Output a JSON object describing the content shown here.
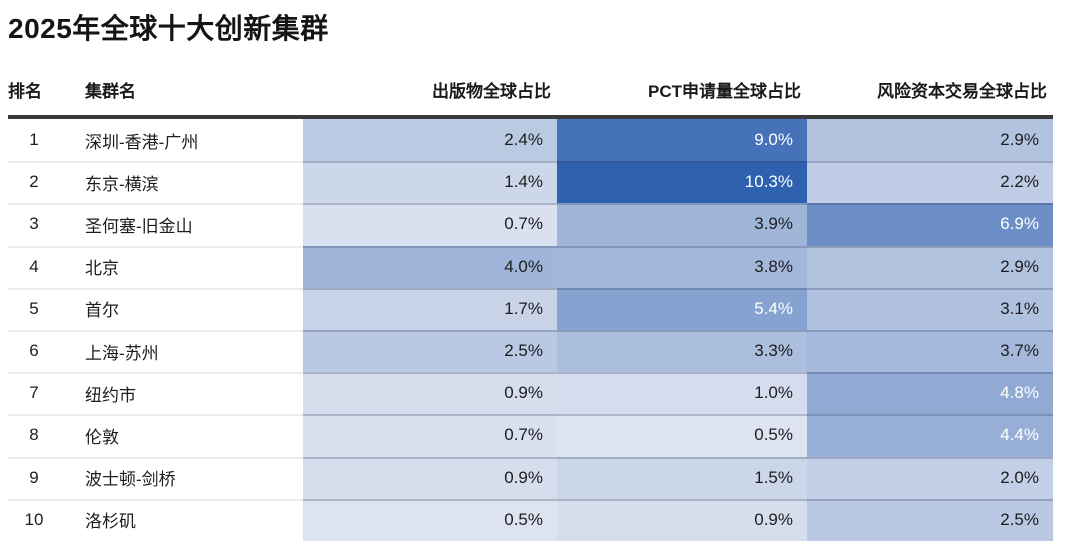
{
  "title": "2025年全球十大创新集群",
  "chart_data": {
    "type": "table",
    "title": "2025年全球十大创新集群",
    "columns": [
      "排名",
      "集群名",
      "出版物全球占比",
      "PCT申请量全球占比",
      "风险资本交易全球占比"
    ],
    "rows": [
      {
        "rank": "1",
        "cluster": "深圳-香港-广州",
        "values": [
          2.4,
          9.0,
          2.9
        ],
        "labels": [
          "2.4%",
          "9.0%",
          "2.9%"
        ]
      },
      {
        "rank": "2",
        "cluster": "东京-横滨",
        "values": [
          1.4,
          10.3,
          2.2
        ],
        "labels": [
          "1.4%",
          "10.3%",
          "2.2%"
        ]
      },
      {
        "rank": "3",
        "cluster": "圣何塞-旧金山",
        "values": [
          0.7,
          3.9,
          6.9
        ],
        "labels": [
          "0.7%",
          "3.9%",
          "6.9%"
        ]
      },
      {
        "rank": "4",
        "cluster": "北京",
        "values": [
          4.0,
          3.8,
          2.9
        ],
        "labels": [
          "4.0%",
          "3.8%",
          "2.9%"
        ]
      },
      {
        "rank": "5",
        "cluster": "首尔",
        "values": [
          1.7,
          5.4,
          3.1
        ],
        "labels": [
          "1.7%",
          "5.4%",
          "3.1%"
        ]
      },
      {
        "rank": "6",
        "cluster": "上海-苏州",
        "values": [
          2.5,
          3.3,
          3.7
        ],
        "labels": [
          "2.5%",
          "3.3%",
          "3.7%"
        ]
      },
      {
        "rank": "7",
        "cluster": "纽约市",
        "values": [
          0.9,
          1.0,
          4.8
        ],
        "labels": [
          "0.9%",
          "1.0%",
          "4.8%"
        ]
      },
      {
        "rank": "8",
        "cluster": "伦敦",
        "values": [
          0.7,
          0.5,
          4.4
        ],
        "labels": [
          "0.7%",
          "0.5%",
          "4.4%"
        ]
      },
      {
        "rank": "9",
        "cluster": "波士顿-剑桥",
        "values": [
          0.9,
          1.5,
          2.0
        ],
        "labels": [
          "0.9%",
          "1.5%",
          "2.0%"
        ]
      },
      {
        "rank": "10",
        "cluster": "洛杉矶",
        "values": [
          0.5,
          0.9,
          2.5
        ],
        "labels": [
          "0.5%",
          "0.9%",
          "2.5%"
        ]
      }
    ],
    "value_format": "percent-1dp",
    "heatmap": true,
    "color_scale": {
      "min": 0.5,
      "max": 10.3,
      "low_color": "#dde3f0",
      "high_color": "#2e61af",
      "white_text_min": 4.2,
      "dark_text_color": "#1d1d1f",
      "light_text_color": "#ffffff"
    }
  },
  "colors": {
    "title_color": "#151515",
    "header_rule": "#3a3a3c",
    "row_divider": "#ececec",
    "background": "#ffffff"
  }
}
